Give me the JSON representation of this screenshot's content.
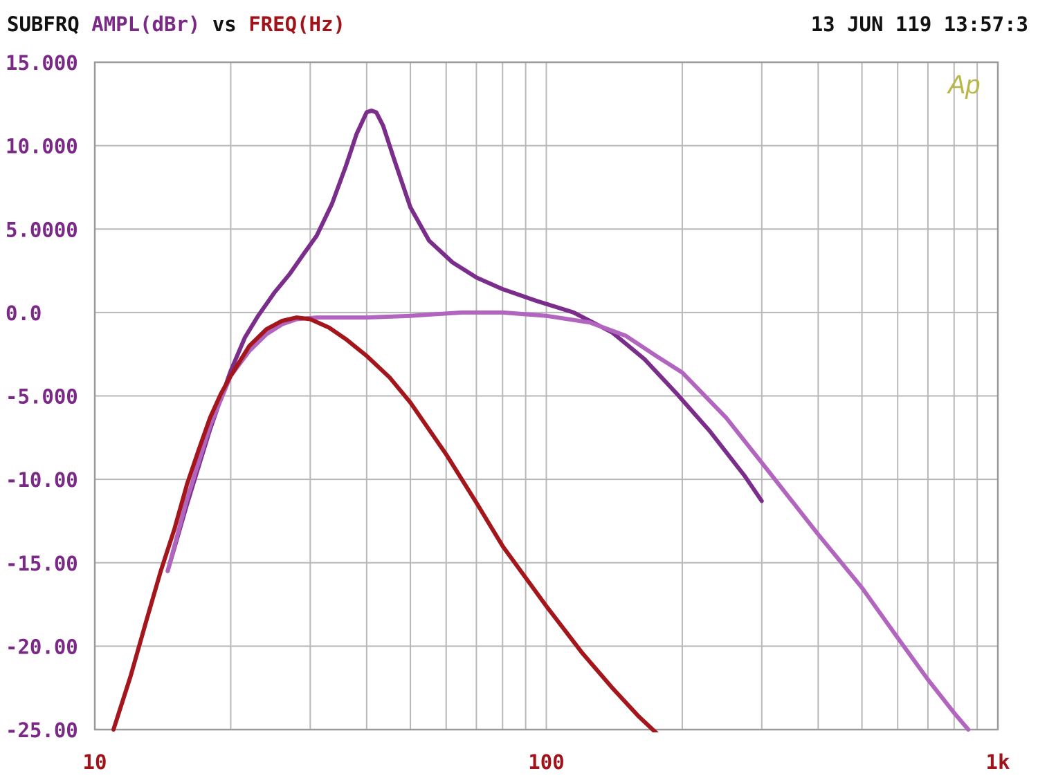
{
  "header": {
    "title": "SUBFRQ",
    "y_quantity": "AMPL(dBr)",
    "vs": "vs",
    "x_quantity": "FREQ(Hz)",
    "timestamp": "13 JUN 119 13:57:3"
  },
  "logo_text": "Ap",
  "colors": {
    "grid": "#b8b8b8",
    "frame": "#9a9a9a",
    "ytick": "#7a2a86",
    "xtick": "#a0131a",
    "logo": "#b8b84a"
  },
  "chart_data": {
    "type": "line",
    "title": "SUBFRQ AMPL(dBr) vs FREQ(Hz)",
    "xlabel": "FREQ(Hz)",
    "ylabel": "AMPL(dBr)",
    "x_scale": "log",
    "xlim": [
      10,
      1000
    ],
    "ylim": [
      -25,
      15
    ],
    "grid": true,
    "x_tick_labels": [
      {
        "value": 10,
        "label": "10"
      },
      {
        "value": 100,
        "label": "100"
      },
      {
        "value": 1000,
        "label": "1k"
      }
    ],
    "y_tick_labels": [
      {
        "value": 15,
        "label": "15.000"
      },
      {
        "value": 10,
        "label": "10.000"
      },
      {
        "value": 5,
        "label": "5.0000"
      },
      {
        "value": 0,
        "label": "0.0"
      },
      {
        "value": -5,
        "label": "-5.000"
      },
      {
        "value": -10,
        "label": "-10.00"
      },
      {
        "value": -15,
        "label": "-15.00"
      },
      {
        "value": -20,
        "label": "-20.00"
      },
      {
        "value": -25,
        "label": "-25.00"
      }
    ],
    "series": [
      {
        "color": "#7b2d8b",
        "x": [
          14.5,
          16,
          18,
          20,
          21.5,
          23,
          25,
          27,
          29,
          31,
          33.5,
          36,
          38,
          40,
          41,
          42,
          43.5,
          46,
          50,
          55,
          62,
          70,
          80,
          95,
          115,
          140,
          165,
          195,
          230,
          275,
          300
        ],
        "y": [
          -15.5,
          -11.5,
          -7,
          -3.5,
          -1.5,
          -0.2,
          1.2,
          2.3,
          3.5,
          4.6,
          6.5,
          8.8,
          10.7,
          12,
          12.1,
          12.0,
          11.2,
          9.2,
          6.3,
          4.3,
          3.0,
          2.1,
          1.4,
          0.7,
          0,
          -1.2,
          -2.8,
          -4.9,
          -7.1,
          -9.8,
          -11.3
        ]
      },
      {
        "color": "#b265be",
        "x": [
          14.5,
          16,
          18,
          20,
          22,
          24,
          26,
          28,
          31,
          35,
          40,
          50,
          65,
          80,
          100,
          125,
          150,
          175,
          200,
          250,
          300,
          400,
          500,
          600,
          700,
          800,
          860
        ],
        "y": [
          -15.5,
          -11.2,
          -6.8,
          -3.8,
          -2.3,
          -1.3,
          -0.7,
          -0.4,
          -0.3,
          -0.3,
          -0.3,
          -0.2,
          0,
          0,
          -0.2,
          -0.6,
          -1.4,
          -2.6,
          -3.6,
          -6.3,
          -9.0,
          -13.3,
          -16.5,
          -19.5,
          -22.0,
          -24.0,
          -25.0
        ]
      },
      {
        "color": "#a3161c",
        "x": [
          11,
          12,
          13,
          14,
          15,
          16,
          17,
          18,
          19,
          20,
          22,
          24,
          26,
          28,
          30,
          33,
          36,
          40,
          45,
          50,
          60,
          70,
          80,
          100,
          120,
          140,
          160,
          180,
          200,
          210
        ],
        "y": [
          -25,
          -21.8,
          -18.5,
          -15.5,
          -13.0,
          -10.3,
          -8.2,
          -6.3,
          -4.9,
          -3.8,
          -2.0,
          -1.0,
          -0.5,
          -0.3,
          -0.4,
          -0.9,
          -1.6,
          -2.6,
          -3.9,
          -5.4,
          -8.5,
          -11.4,
          -14.0,
          -17.6,
          -20.4,
          -22.5,
          -24.2,
          -25.5,
          -26.5,
          -27.0
        ]
      }
    ]
  }
}
